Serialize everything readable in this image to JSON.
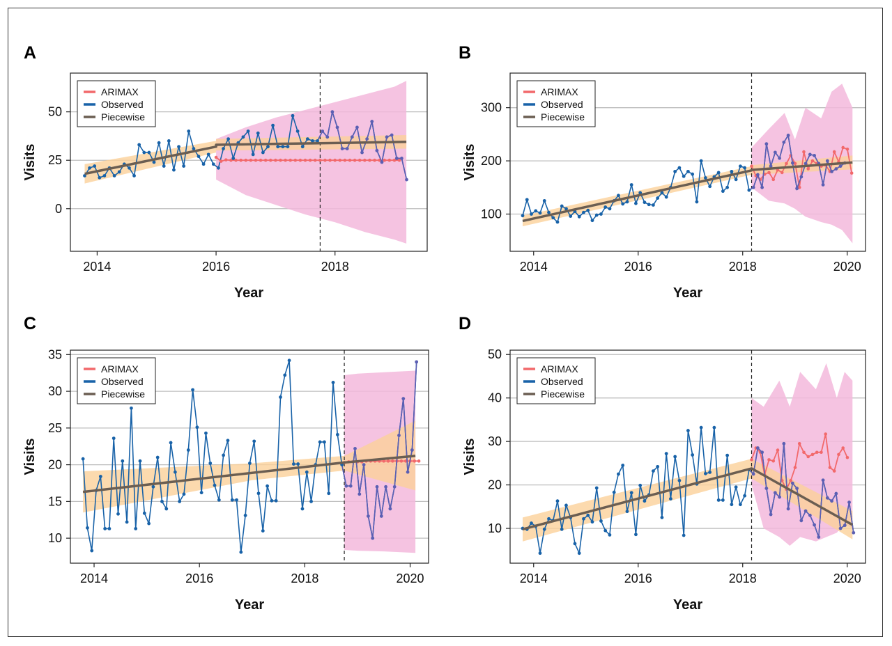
{
  "colors": {
    "arimax": "#f2696b",
    "observed": "#1862a8",
    "piecewise": "#6b5e52",
    "ci_arimax": "#f3b9dc",
    "ci_piecewise": "#fbd19a",
    "grid": "#bdbdbd"
  },
  "chart_data": [
    {
      "type": "line",
      "panel": "A",
      "xlabel": "Year",
      "ylabel": "Visits",
      "xlim": [
        2013.55,
        2019.55
      ],
      "ylim": [
        -22,
        70
      ],
      "xticks": [
        2014,
        2016,
        2018
      ],
      "yticks": [
        0,
        25,
        50
      ],
      "intervention": 2017.75,
      "legend": [
        "ARIMAX",
        "Observed",
        "Piecewise"
      ],
      "legend_position": "top-left",
      "observed_x_start": 2013.79,
      "observed_x_step": 0.0833,
      "observed": [
        17,
        21,
        22,
        16,
        17,
        21,
        17,
        19,
        23,
        21,
        17,
        33,
        29,
        29,
        24,
        34,
        22,
        35,
        20,
        32,
        22,
        40,
        31,
        27,
        23,
        28,
        23,
        21,
        31,
        36,
        26,
        34,
        37,
        40,
        28,
        39,
        29,
        32,
        43,
        32,
        32,
        32,
        48,
        40,
        32,
        36,
        35,
        35,
        40,
        37,
        50,
        42,
        31,
        31,
        37,
        42,
        29,
        36,
        45,
        30,
        24,
        37,
        38,
        26,
        26,
        15
      ],
      "arimax_x_start": 2016.0,
      "arimax_x_step": 0.0833,
      "arimax": [
        26.5,
        24.5,
        25.2,
        25,
        25,
        25,
        25,
        25,
        25,
        25,
        25,
        25,
        25,
        25,
        25,
        25,
        25,
        25,
        25,
        25,
        25,
        25,
        25,
        25,
        25,
        25,
        25,
        25,
        25,
        25,
        25,
        25,
        25,
        25,
        25,
        25,
        25,
        25
      ],
      "arimax_upper": [
        [
          2016.0,
          36
        ],
        [
          2016.5,
          42
        ],
        [
          2017.0,
          47
        ],
        [
          2017.5,
          51
        ],
        [
          2018.0,
          55
        ],
        [
          2018.5,
          59
        ],
        [
          2019.0,
          63
        ],
        [
          2019.2,
          66
        ]
      ],
      "arimax_lower": [
        [
          2016.0,
          15
        ],
        [
          2016.5,
          7
        ],
        [
          2017.0,
          2
        ],
        [
          2017.5,
          -3
        ],
        [
          2018.0,
          -7
        ],
        [
          2018.5,
          -12
        ],
        [
          2019.0,
          -16
        ],
        [
          2019.2,
          -18
        ]
      ],
      "piecewise": [
        [
          2013.79,
          18
        ],
        [
          2016.0,
          32
        ],
        [
          2016.0,
          33
        ],
        [
          2019.2,
          34.5
        ]
      ],
      "piecewise_upper": [
        [
          2013.79,
          23
        ],
        [
          2016.0,
          35
        ],
        [
          2016.0,
          36
        ],
        [
          2019.2,
          38
        ]
      ],
      "piecewise_lower": [
        [
          2013.79,
          13
        ],
        [
          2016.0,
          29
        ],
        [
          2016.0,
          30
        ],
        [
          2019.2,
          31
        ]
      ]
    },
    {
      "type": "line",
      "panel": "B",
      "xlabel": "Year",
      "ylabel": "Visits",
      "xlim": [
        2013.55,
        2020.35
      ],
      "ylim": [
        30,
        365
      ],
      "xticks": [
        2014,
        2016,
        2018,
        2020
      ],
      "yticks": [
        100,
        200,
        300
      ],
      "intervention": 2018.17,
      "legend": [
        "ARIMAX",
        "Observed",
        "Piecewise"
      ],
      "legend_position": "top-left",
      "observed_x_start": 2013.79,
      "observed_x_step": 0.0833,
      "observed": [
        97,
        127,
        100,
        106,
        102,
        125,
        103,
        93,
        85,
        115,
        110,
        96,
        105,
        95,
        103,
        107,
        88,
        98,
        100,
        113,
        110,
        125,
        135,
        119,
        123,
        155,
        120,
        140,
        122,
        118,
        117,
        130,
        140,
        132,
        150,
        180,
        187,
        171,
        180,
        175,
        123,
        200,
        168,
        152,
        170,
        178,
        143,
        150,
        180,
        165,
        190,
        187,
        145,
        150,
        174,
        150,
        232,
        190,
        216,
        205,
        235,
        248,
        196,
        148,
        170,
        195,
        212,
        210,
        195,
        155,
        200,
        180,
        185,
        190,
        196
      ],
      "arimax_x_start": 2018.17,
      "arimax_x_step": 0.0833,
      "arimax": [
        190,
        172,
        165,
        175,
        178,
        165,
        183,
        178,
        195,
        210,
        195,
        150,
        217,
        185,
        200,
        195,
        190,
        192,
        180,
        217,
        198,
        225,
        222,
        177
      ],
      "arimax_upper": [
        [
          2018.17,
          225
        ],
        [
          2018.5,
          260
        ],
        [
          2018.8,
          290
        ],
        [
          2019.0,
          240
        ],
        [
          2019.2,
          300
        ],
        [
          2019.5,
          280
        ],
        [
          2019.7,
          330
        ],
        [
          2019.9,
          345
        ],
        [
          2020.1,
          300
        ]
      ],
      "arimax_lower": [
        [
          2018.17,
          150
        ],
        [
          2018.5,
          125
        ],
        [
          2018.8,
          120
        ],
        [
          2019.0,
          110
        ],
        [
          2019.2,
          95
        ],
        [
          2019.5,
          85
        ],
        [
          2019.7,
          80
        ],
        [
          2019.9,
          70
        ],
        [
          2020.1,
          45
        ]
      ],
      "piecewise": [
        [
          2013.79,
          87
        ],
        [
          2018.17,
          182
        ],
        [
          2018.17,
          183
        ],
        [
          2020.1,
          197
        ]
      ],
      "piecewise_upper": [
        [
          2013.79,
          97
        ],
        [
          2018.17,
          190
        ],
        [
          2018.17,
          192
        ],
        [
          2020.1,
          210
        ]
      ],
      "piecewise_lower": [
        [
          2013.79,
          77
        ],
        [
          2018.17,
          174
        ],
        [
          2018.17,
          174
        ],
        [
          2020.1,
          184
        ]
      ]
    },
    {
      "type": "line",
      "panel": "C",
      "xlabel": "Year",
      "ylabel": "Visits",
      "xlim": [
        2013.55,
        2020.35
      ],
      "ylim": [
        6.6,
        35.6
      ],
      "xticks": [
        2014,
        2016,
        2018,
        2020
      ],
      "yticks": [
        10,
        15,
        20,
        25,
        30,
        35
      ],
      "intervention": 2018.75,
      "legend": [
        "ARIMAX",
        "Observed",
        "Piecewise"
      ],
      "legend_position": "top-left",
      "observed_x_start": 2013.79,
      "observed_x_step": 0.0833,
      "observed": [
        20.8,
        11.4,
        8.3,
        16.5,
        18.4,
        11.3,
        11.3,
        23.6,
        13.3,
        20.5,
        12.2,
        27.7,
        11.3,
        20.5,
        13.4,
        12.0,
        17.0,
        21.0,
        15.0,
        14.0,
        23.0,
        19.0,
        15.0,
        16.0,
        22.0,
        30.2,
        25.1,
        16.2,
        24.3,
        20.2,
        17.2,
        15.2,
        21.3,
        23.3,
        15.2,
        15.2,
        8.1,
        13.1,
        20.2,
        23.2,
        16.1,
        11.0,
        17.1,
        15.1,
        15.1,
        29.2,
        32.2,
        34.2,
        20.1,
        20.1,
        14.0,
        19.0,
        15.0,
        20.0,
        23.1,
        23.1,
        16.1,
        31.2,
        24.1,
        20.0,
        17.1,
        17.1,
        22.2,
        16.0,
        20.0,
        13.0,
        10.0,
        17.0,
        13.0,
        17.0,
        14.0,
        17.0,
        24.0,
        29.0,
        19.0,
        22.0,
        34.0
      ],
      "arimax_x_start": 2018.75,
      "arimax_x_step": 0.0833,
      "arimax": [
        20.3,
        20.4,
        20.4,
        20.4,
        20.4,
        20.5,
        20.5,
        20.5,
        20.5,
        20.5,
        20.5,
        20.5,
        20.5,
        20.5,
        20.5,
        20.5,
        20.5,
        20.5
      ],
      "arimax_upper": [
        [
          2018.75,
          32.2
        ],
        [
          2019.0,
          32.4
        ],
        [
          2019.5,
          32.6
        ],
        [
          2020.1,
          32.8
        ]
      ],
      "arimax_lower": [
        [
          2018.75,
          8.4
        ],
        [
          2019.0,
          8.3
        ],
        [
          2019.5,
          8.2
        ],
        [
          2020.1,
          8.0
        ]
      ],
      "piecewise": [
        [
          2013.79,
          16.3
        ],
        [
          2018.75,
          20.3
        ],
        [
          2020.1,
          21.2
        ]
      ],
      "piecewise_upper": [
        [
          2013.79,
          19.1
        ],
        [
          2017.0,
          20.2
        ],
        [
          2018.75,
          21.2
        ],
        [
          2020.1,
          26.0
        ]
      ],
      "piecewise_lower": [
        [
          2013.79,
          13.5
        ],
        [
          2017.0,
          17.9
        ],
        [
          2018.75,
          19.2
        ],
        [
          2020.1,
          16.5
        ]
      ]
    },
    {
      "type": "line",
      "panel": "D",
      "xlabel": "Year",
      "ylabel": "Visits",
      "xlim": [
        2013.55,
        2020.35
      ],
      "ylim": [
        2,
        51
      ],
      "xticks": [
        2014,
        2016,
        2018,
        2020
      ],
      "yticks": [
        10,
        20,
        30,
        40,
        50
      ],
      "intervention": 2018.17,
      "legend": [
        "ARIMAX",
        "Observed",
        "Piecewise"
      ],
      "legend_position": "top-left",
      "observed_x_start": 2013.79,
      "observed_x_step": 0.0833,
      "observed": [
        10.0,
        9.8,
        11.2,
        10.5,
        4.3,
        9.8,
        12.2,
        11.8,
        16.3,
        9.8,
        15.3,
        12.5,
        6.5,
        4.3,
        12.2,
        13.0,
        11.5,
        19.3,
        11.7,
        9.5,
        8.5,
        18.3,
        22.5,
        24.5,
        13.9,
        18.2,
        8.6,
        19.9,
        16.3,
        17.7,
        23.2,
        24.2,
        12.5,
        27.2,
        16.8,
        26.5,
        21.0,
        8.4,
        32.5,
        26.9,
        20.2,
        33.2,
        22.6,
        22.9,
        33.2,
        16.5,
        16.5,
        26.8,
        15.5,
        19.5,
        15.5,
        17.5,
        23.5,
        22.5,
        28.5,
        27.5,
        19.2,
        13.2,
        18.2,
        17.2,
        29.5,
        14.5,
        20.4,
        19.2,
        11.8,
        14.0,
        13.0,
        10.8,
        8.0,
        21.1,
        17.0,
        16.3,
        18.0,
        10.0,
        10.7,
        16.0,
        9.0
      ],
      "arimax_x_start": 2018.17,
      "arimax_x_step": 0.0833,
      "arimax": [
        25.8,
        28.5,
        27.5,
        22.3,
        25.8,
        25.5,
        28.0,
        21.0,
        19.0,
        21.0,
        24.0,
        29.5,
        27.5,
        26.5,
        27.0,
        27.5,
        27.5,
        31.7,
        24.0,
        23.2,
        27.0,
        28.5,
        26.3
      ],
      "arimax_upper": [
        [
          2018.17,
          40
        ],
        [
          2018.4,
          38
        ],
        [
          2018.7,
          44
        ],
        [
          2018.9,
          38
        ],
        [
          2019.1,
          46
        ],
        [
          2019.4,
          42
        ],
        [
          2019.6,
          48
        ],
        [
          2019.8,
          40
        ],
        [
          2019.95,
          46
        ],
        [
          2020.1,
          44
        ]
      ],
      "arimax_lower": [
        [
          2018.17,
          20
        ],
        [
          2018.4,
          10
        ],
        [
          2018.7,
          8
        ],
        [
          2018.9,
          6
        ],
        [
          2019.1,
          8
        ],
        [
          2019.4,
          7
        ],
        [
          2019.6,
          8
        ],
        [
          2019.8,
          9
        ],
        [
          2019.95,
          11
        ],
        [
          2020.1,
          10
        ]
      ],
      "piecewise": [
        [
          2013.79,
          9.8
        ],
        [
          2018.17,
          23.8
        ],
        [
          2020.1,
          10.8
        ]
      ],
      "piecewise_upper": [
        [
          2013.79,
          12.5
        ],
        [
          2018.17,
          26.0
        ],
        [
          2020.1,
          14.0
        ]
      ],
      "piecewise_lower": [
        [
          2013.79,
          7.0
        ],
        [
          2018.17,
          21.5
        ],
        [
          2020.1,
          7.5
        ]
      ]
    }
  ]
}
